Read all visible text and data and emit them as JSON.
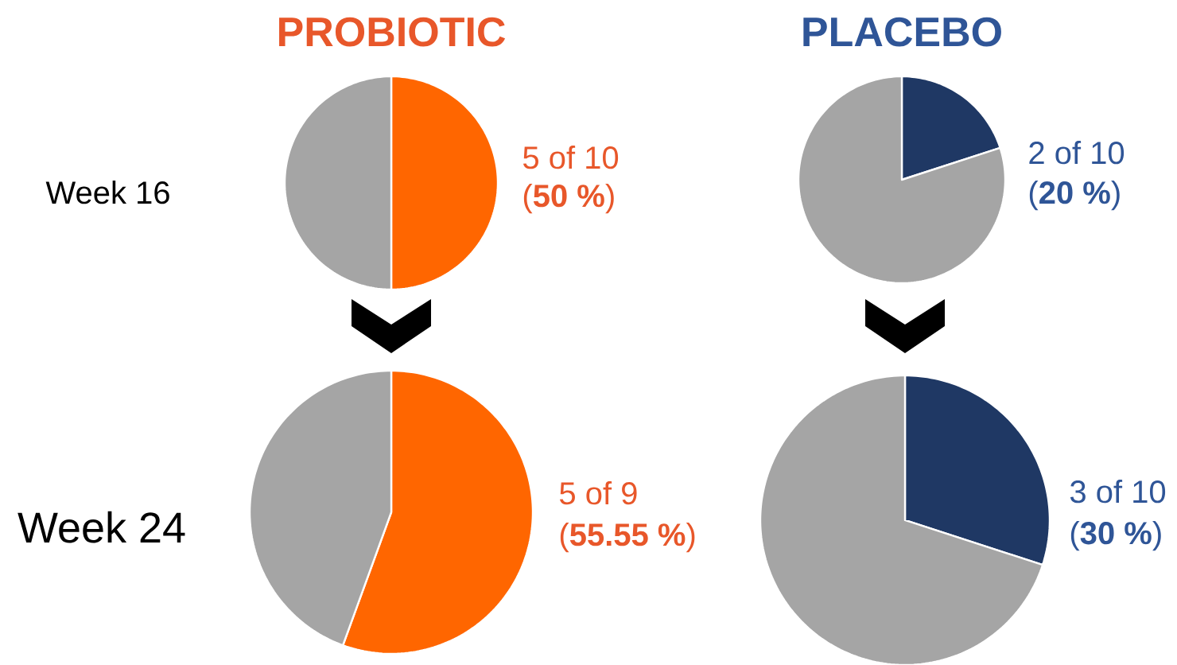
{
  "chart_data": [
    {
      "type": "pie",
      "title": "PROBIOTIC",
      "ylabel": "Week 16",
      "categories": [
        null,
        null
      ],
      "values": [
        50,
        50
      ],
      "colors": [
        "#ff6600",
        "#a5a5a5"
      ],
      "annotations": [
        "5 of 10",
        "(**50 %**)"
      ]
    },
    {
      "type": "pie",
      "title": "PLACEBO",
      "categories": [
        null,
        null
      ],
      "values": [
        20,
        80
      ],
      "colors": [
        "#1f3864",
        "#a5a5a5"
      ],
      "annotations": [
        "2 of 10",
        "(**20 %**)"
      ]
    },
    {
      "type": "pie",
      "ylabel": "Week 24",
      "categories": [
        null,
        null
      ],
      "values": [
        55.55,
        44.45
      ],
      "colors": [
        "#ff6600",
        "#a5a5a5"
      ],
      "annotations": [
        "5 of 9",
        "(**55.55 %**)"
      ]
    },
    {
      "type": "pie",
      "categories": [
        null,
        null
      ],
      "values": [
        30,
        70
      ],
      "colors": [
        "#1f3864",
        "#a5a5a5"
      ],
      "annotations": [
        "3 of 10",
        "(**30 %**)"
      ]
    }
  ]
}
